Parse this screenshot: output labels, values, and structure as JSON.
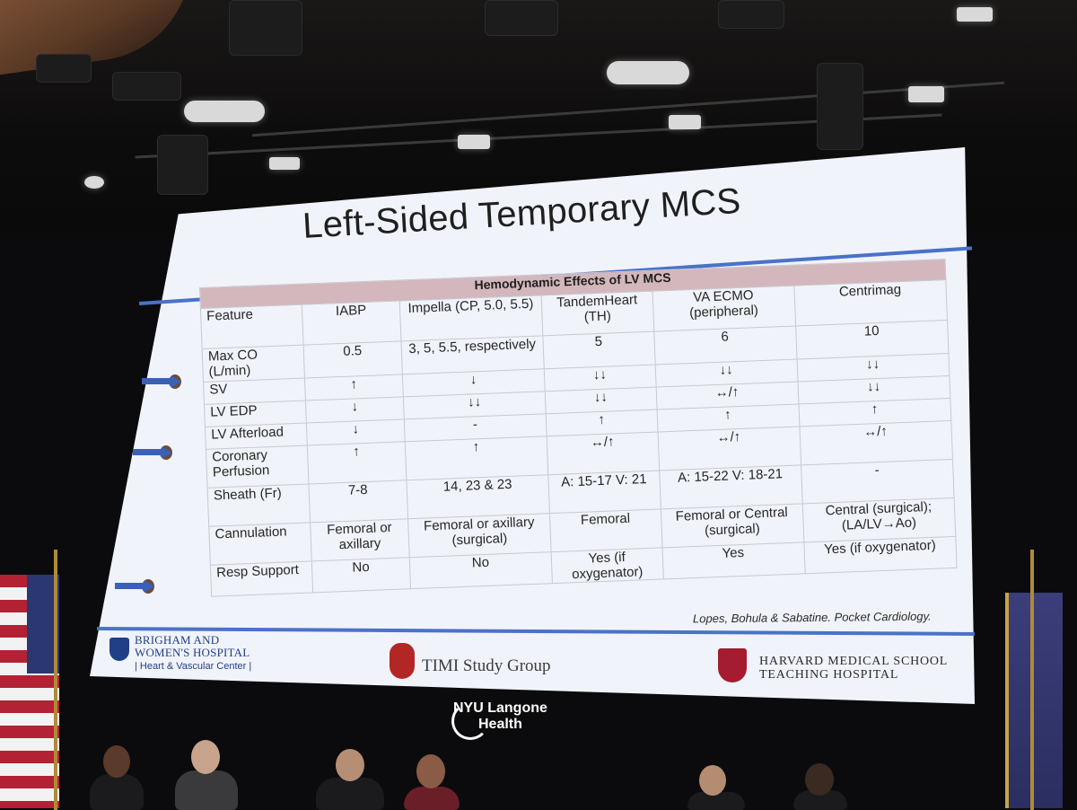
{
  "slide": {
    "title": "Left-Sided Temporary MCS",
    "table_title": "Hemodynamic Effects of LV MCS",
    "columns": [
      "Feature",
      "IABP",
      "Impella (CP, 5.0, 5.5)",
      "TandemHeart (TH)",
      "VA ECMO (peripheral)",
      "Centrimag"
    ],
    "rows": [
      {
        "label": "Max CO (L/min)",
        "cells": [
          "0.5",
          "3, 5, 5.5, respectively",
          "5",
          "6",
          "10"
        ]
      },
      {
        "label": "SV",
        "cells": [
          "↑",
          "↓",
          "↓↓",
          "↓↓",
          "↓↓"
        ]
      },
      {
        "label": "LV EDP",
        "cells": [
          "↓",
          "↓↓",
          "↓↓",
          "↔/↑",
          "↓↓"
        ]
      },
      {
        "label": "LV Afterload",
        "cells": [
          "↓",
          "-",
          "↑",
          "↑",
          "↑"
        ]
      },
      {
        "label": "Coronary Perfusion",
        "cells": [
          "↑",
          "↑",
          "↔/↑",
          "↔/↑",
          "↔/↑"
        ]
      },
      {
        "label": "Sheath (Fr)",
        "cells": [
          "7-8",
          "14, 23 & 23",
          "A: 15-17 V: 21",
          "A: 15-22 V: 18-21",
          "-"
        ]
      },
      {
        "label": "Cannulation",
        "cells": [
          "Femoral or axillary",
          "Femoral or axillary (surgical)",
          "Femoral",
          "Femoral or Central (surgical)",
          "Central (surgical); (LA/LV→Ao)"
        ]
      },
      {
        "label": "Resp Support",
        "cells": [
          "No",
          "No",
          "Yes (if oxygenator)",
          "Yes",
          "Yes (if oxygenator)"
        ]
      }
    ],
    "citation": "Lopes, Bohula & Sabatine. Pocket Cardiology.",
    "logos": {
      "bwh_line1": "BRIGHAM AND",
      "bwh_line2": "WOMEN'S HOSPITAL",
      "bwh_sub": "| Heart & Vascular Center |",
      "timi": "TIMI Study Group",
      "hms_line1": "HARVARD MEDICAL SCHOOL",
      "hms_line2": "TEACHING HOSPITAL"
    }
  },
  "venue": {
    "logo_line1": "NYU Langone",
    "logo_line2": "Health"
  },
  "colors": {
    "screen": "#f1f3fa",
    "table_header": "#d3b7bc",
    "accent_blue": "#4a72c8"
  }
}
